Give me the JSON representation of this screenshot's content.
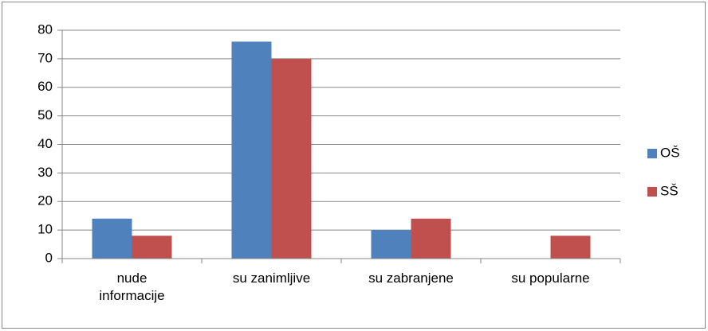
{
  "chart_data": {
    "type": "bar",
    "categories": [
      "nude informacije",
      "su zanimljive",
      "su zabranjene",
      "su popularne"
    ],
    "series": [
      {
        "name": "OŠ",
        "color": "#4f81bd",
        "values": [
          14,
          76,
          10,
          0
        ]
      },
      {
        "name": "SŠ",
        "color": "#c0504d",
        "values": [
          8,
          70,
          14,
          8
        ]
      }
    ],
    "ylim": [
      0,
      80
    ],
    "yticks": [
      0,
      10,
      20,
      30,
      40,
      50,
      60,
      70,
      80
    ],
    "grid": true,
    "legend": "right"
  }
}
